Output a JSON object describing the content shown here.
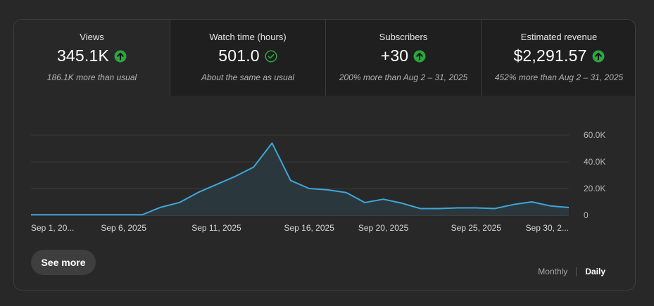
{
  "metrics": [
    {
      "label": "Views",
      "value": "345.1K",
      "comparison": "186.1K more than usual",
      "status": "up",
      "selected": true
    },
    {
      "label": "Watch time (hours)",
      "value": "501.0",
      "comparison": "About the same as usual",
      "status": "same",
      "selected": false
    },
    {
      "label": "Subscribers",
      "value": "+30",
      "comparison": "200% more than Aug 2 – 31, 2025",
      "status": "up",
      "selected": false
    },
    {
      "label": "Estimated revenue",
      "value": "$2,291.57",
      "comparison": "452% more than Aug 2 – 31, 2025",
      "status": "up",
      "selected": false
    }
  ],
  "colors": {
    "up": "#2ba640",
    "same": "#2ba640",
    "line": "#3ea6d9",
    "fill": "#2a3a40"
  },
  "chart_data": {
    "type": "area",
    "series": [
      {
        "values": [
          400,
          400,
          400,
          400,
          400,
          400,
          400,
          6000,
          9500,
          17000,
          23000,
          29000,
          36000,
          54000,
          26000,
          20000,
          19000,
          17000,
          9500,
          12000,
          9000,
          5000,
          5000,
          5500,
          5500,
          5000,
          8000,
          10000,
          7000,
          5800
        ]
      }
    ],
    "x_tick_labels": [
      "Sep 1, 20...",
      "Sep 6, 2025",
      "Sep 11, 2025",
      "Sep 16, 2025",
      "Sep 20, 2025",
      "Sep 25, 2025",
      "Sep 30, 2..."
    ],
    "x_tick_index": [
      0,
      5,
      10,
      15,
      19,
      24,
      29
    ],
    "y_ticks": [
      0,
      20000,
      40000,
      60000
    ],
    "y_tick_labels": [
      "0",
      "20.0K",
      "40.0K",
      "60.0K"
    ],
    "ylim": [
      0,
      60000
    ],
    "grid": true,
    "y_axis_position": "right"
  },
  "actions": {
    "see_more": "See more"
  },
  "granularity": {
    "options": [
      "Monthly",
      "Daily"
    ],
    "selected": "Daily"
  }
}
